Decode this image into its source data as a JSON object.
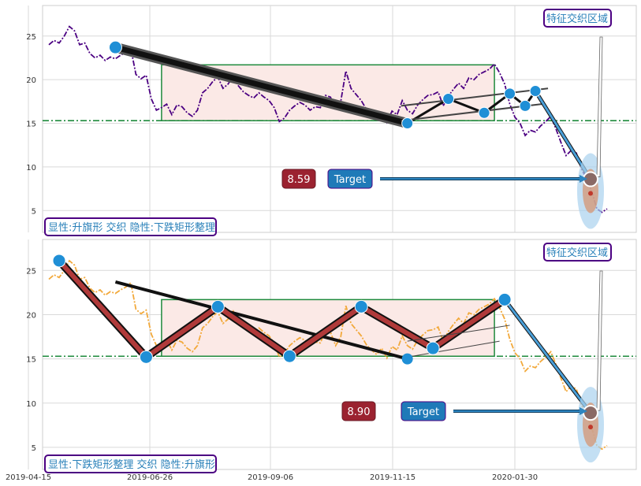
{
  "chart_data": [
    {
      "type": "line",
      "panel": "top",
      "ylim": [
        2.5,
        28.5
      ],
      "yticks": [
        5,
        10,
        15,
        20,
        25
      ],
      "grid": true,
      "line_color": "#4b0082",
      "series": [
        {
          "values": [
            24.0,
            24.5,
            24.2,
            25.0,
            26.1,
            25.6,
            24.0,
            24.2,
            23.0,
            22.5,
            22.8,
            22.2,
            22.6,
            22.4,
            22.8,
            23.1,
            23.6,
            20.6,
            20.1,
            20.5,
            17.8,
            16.5,
            16.8,
            17.2,
            16.0,
            17.1,
            16.9,
            16.2,
            15.8,
            16.5,
            18.5,
            19.0,
            19.8,
            20.3,
            19.0,
            19.5,
            20.4,
            19.3,
            18.6,
            18.2,
            17.9,
            18.5,
            18.0,
            17.6,
            16.8,
            15.2,
            15.6,
            16.5,
            17.0,
            17.4,
            17.1,
            16.5,
            16.9,
            16.8,
            18.2,
            18.0,
            16.5,
            17.5,
            21.0,
            19.0,
            18.3,
            17.6,
            16.6,
            16.0,
            15.5,
            16.2,
            15.1,
            16.4,
            16.0,
            17.6,
            16.5,
            16.1,
            17.1,
            17.7,
            18.2,
            18.3,
            18.6,
            17.0,
            18.1,
            18.9,
            19.6,
            19.0,
            20.2,
            20.0,
            20.6,
            20.9,
            21.2,
            21.8,
            20.8,
            19.5,
            17.2,
            15.7,
            15.0,
            13.6,
            14.2,
            14.0,
            14.7,
            15.2,
            15.8,
            14.4,
            12.8,
            11.3,
            11.9,
            11.6,
            9.8,
            8.6,
            7.2,
            5.2,
            4.8,
            5.2
          ]
        }
      ],
      "tag": "特征交织区域",
      "zone": {
        "y_low": 15.3,
        "y_high": 21.7
      },
      "support_level": 15.3,
      "pattern_path": [
        23.7,
        15.0,
        17.8,
        16.2,
        18.4,
        17.0,
        18.7
      ],
      "predicted_value": "8.59",
      "target_label": "Target",
      "pattern_note": "显性:升旗形 交织 隐性:下跌矩形整理"
    },
    {
      "type": "line",
      "panel": "bottom",
      "ylim": [
        2.5,
        28.5
      ],
      "yticks": [
        5,
        10,
        15,
        20,
        25
      ],
      "grid": true,
      "line_color": "#f2a93b",
      "series": [
        {
          "values": [
            24.0,
            24.5,
            24.2,
            25.0,
            26.1,
            25.6,
            24.0,
            24.2,
            23.0,
            22.5,
            22.8,
            22.2,
            22.6,
            22.4,
            22.8,
            23.1,
            23.6,
            20.6,
            20.1,
            20.5,
            17.8,
            16.5,
            16.8,
            17.2,
            16.0,
            17.1,
            16.9,
            16.2,
            15.8,
            16.5,
            18.5,
            19.0,
            19.8,
            20.3,
            19.0,
            19.5,
            20.4,
            19.3,
            18.6,
            18.2,
            17.9,
            18.5,
            18.0,
            17.6,
            16.8,
            15.2,
            15.6,
            16.5,
            17.0,
            17.4,
            17.1,
            16.5,
            16.9,
            16.8,
            18.2,
            18.0,
            16.5,
            17.5,
            21.0,
            19.0,
            18.3,
            17.6,
            16.6,
            16.0,
            15.5,
            16.2,
            15.1,
            16.4,
            16.0,
            17.6,
            16.5,
            16.1,
            17.1,
            17.7,
            18.2,
            18.3,
            18.6,
            17.0,
            18.1,
            18.9,
            19.6,
            19.0,
            20.2,
            20.0,
            20.6,
            20.9,
            21.2,
            21.8,
            20.8,
            19.5,
            17.2,
            15.7,
            15.0,
            13.6,
            14.2,
            14.0,
            14.7,
            15.2,
            15.8,
            14.4,
            12.8,
            11.3,
            11.9,
            11.6,
            9.8,
            8.6,
            7.2,
            5.2,
            4.8,
            5.2
          ]
        }
      ],
      "tag": "特征交织区域",
      "zone": {
        "y_low": 15.3,
        "y_high": 21.7
      },
      "support_level": 15.3,
      "pattern_path": [
        26.1,
        15.2,
        20.9,
        15.3,
        20.9,
        16.2,
        21.7
      ],
      "predicted_value": "8.90",
      "target_label": "Target",
      "pattern_note": "显性:下跌矩形整理 交织 隐性:升旗形"
    }
  ],
  "x_ticks": [
    "2019-04-15",
    "2019-06-26",
    "2019-09-06",
    "2019-11-15",
    "2020-01-30"
  ],
  "colors": {
    "zone_fill": "#fbe9e6",
    "zone_border": "#1e8a3c",
    "marker": "#1f8fd6",
    "pattern_red": "#b03a3a",
    "target_blue": "#1f7ab8",
    "value_box": "#9b2230",
    "tag_border": "#4b0082"
  }
}
